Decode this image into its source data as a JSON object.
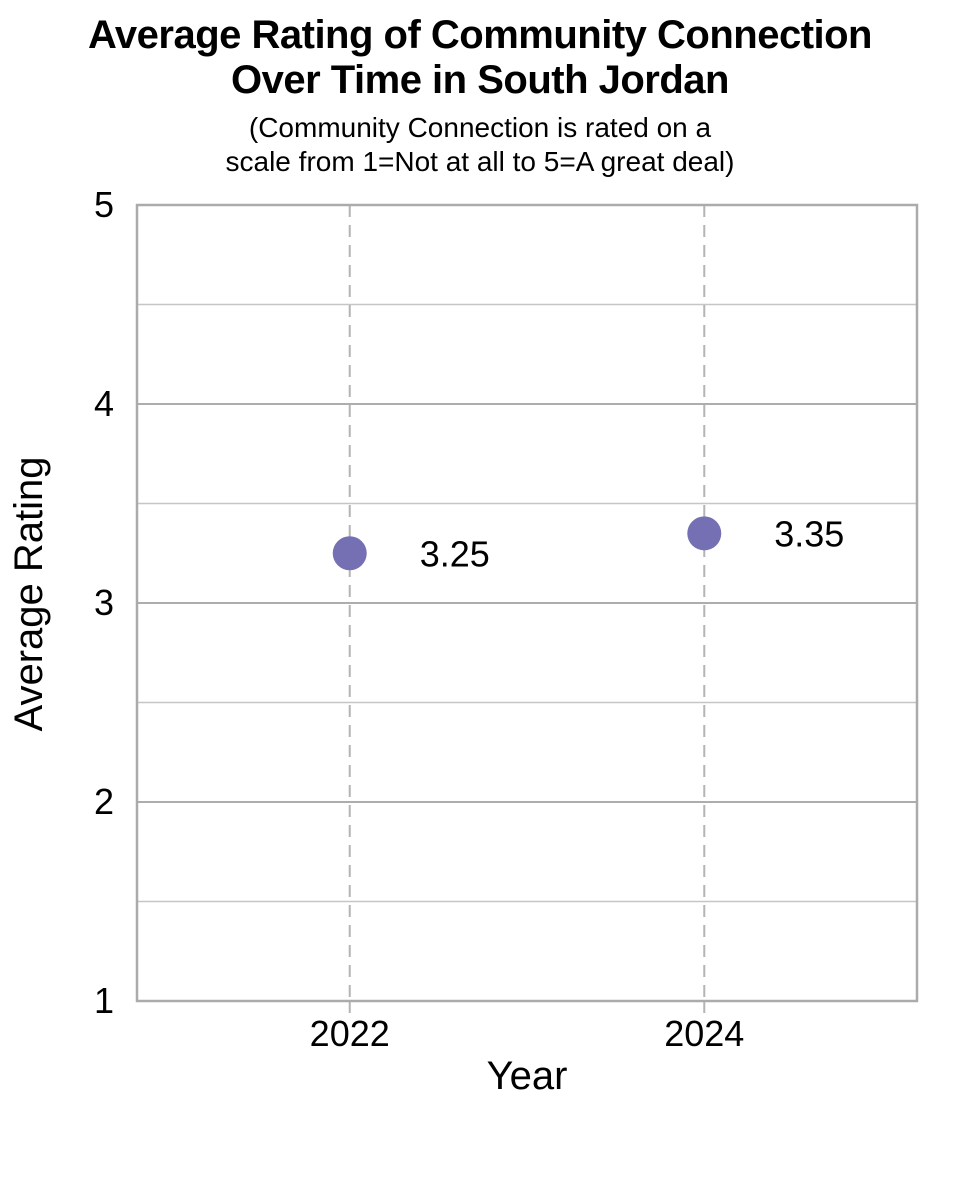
{
  "chart_data": {
    "type": "scatter",
    "title": "Average Rating of Community Connection Over Time in South Jordan",
    "title_lines": [
      "Average Rating of Community Connection",
      "Over Time in South Jordan"
    ],
    "subtitle": "(Community Connection is rated on a scale from 1=Not at all to 5=A great deal)",
    "subtitle_lines": [
      "(Community Connection is rated on a",
      "scale from 1=Not at all to 5=A great deal)"
    ],
    "xlabel": "Year",
    "ylabel": "Average Rating",
    "x": [
      2022,
      2024
    ],
    "y": [
      3.25,
      3.35
    ],
    "point_labels": [
      "3.25",
      "3.35"
    ],
    "xtick_labels": [
      "2022",
      "2024"
    ],
    "yticks": [
      1,
      2,
      3,
      4,
      5
    ],
    "ytick_labels": [
      "1",
      "2",
      "3",
      "4",
      "5"
    ],
    "ylim": [
      1,
      5
    ],
    "xlim": [
      2020.8,
      2025.2
    ],
    "grid": {
      "horizontal": "solid lines every 0.5 from 1.5 to 4.5",
      "vertical": "dashed gray line at each x data value, with small tick below axis"
    },
    "legend": "none",
    "marker": {
      "shape": "circle",
      "radius_px": 17
    },
    "colors": {
      "point": "#7570b3",
      "major_grid": "#adadad",
      "minor_grid": "#c6c6c6",
      "dashed_line": "#b4b4b4",
      "plot_border": "#ababab",
      "text": "#000000",
      "background": "#ffffff"
    }
  }
}
